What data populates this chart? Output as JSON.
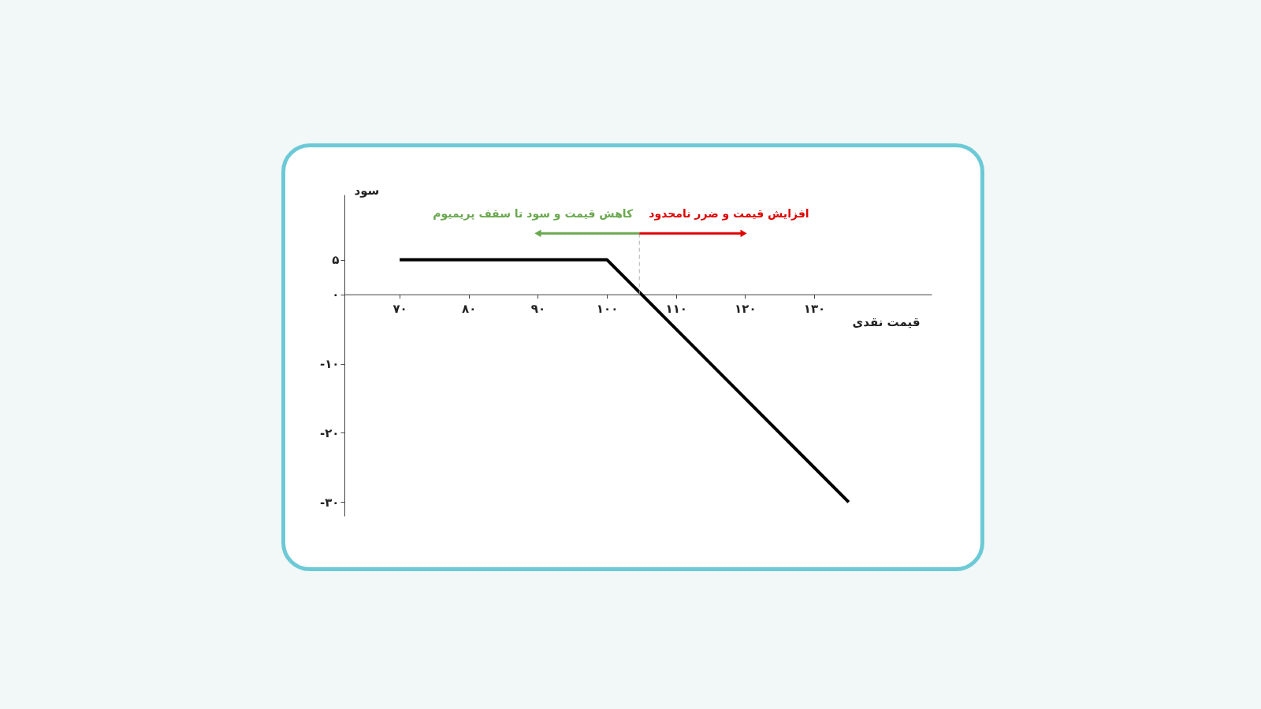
{
  "chart_data": {
    "type": "line",
    "xlabel": "قیمت نقدی",
    "ylabel": "سود",
    "xlim": [
      62,
      147
    ],
    "ylim": [
      -32,
      14.4
    ],
    "xticks": [
      {
        "value": 70,
        "label": "۷۰"
      },
      {
        "value": 80,
        "label": "۸۰"
      },
      {
        "value": 90,
        "label": "۹۰"
      },
      {
        "value": 100,
        "label": "۱۰۰"
      },
      {
        "value": 110,
        "label": "۱۱۰"
      },
      {
        "value": 120,
        "label": "۱۲۰"
      },
      {
        "value": 130,
        "label": "۱۳۰"
      }
    ],
    "yticks": [
      {
        "value": 5,
        "label": "۵"
      },
      {
        "value": 0,
        "label": "۰"
      },
      {
        "value": -10,
        "label": "-۱۰"
      },
      {
        "value": -20,
        "label": "-۲۰"
      },
      {
        "value": -30,
        "label": "-۳۰"
      }
    ],
    "series": [
      {
        "color": "#000000",
        "x": [
          70,
          100,
          135
        ],
        "values": [
          5,
          5,
          -30
        ]
      }
    ],
    "ref_lines": [
      {
        "axis": "x",
        "value": 104.7,
        "color": "#b0b0b0",
        "line_style": "dashed"
      }
    ],
    "annotations": [
      {
        "text": "کاهش قیمت و سود تا سقف پریمیوم",
        "x": 90,
        "y": 8.8
      },
      {
        "text": "افزایش قیمت و ضرر نامحدود",
        "x": 119.8,
        "y": 8.8
      }
    ],
    "marker": "none",
    "line_style": "solid"
  }
}
